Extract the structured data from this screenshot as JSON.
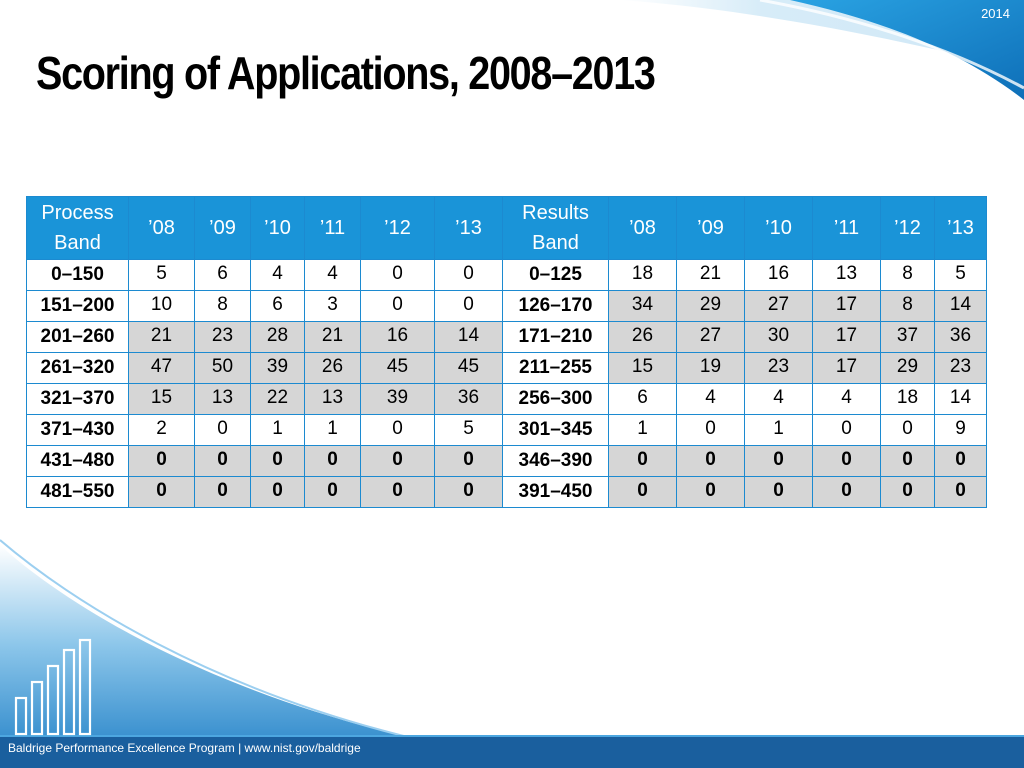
{
  "year_tag": "2014",
  "title": "Scoring of Applications, 2008–2013",
  "table": {
    "process_header": "Process Band",
    "results_header": "Results Band",
    "years": [
      "’08",
      "’09",
      "’10",
      "’11",
      "’12",
      "’13"
    ],
    "rows": [
      {
        "process_band": "0–150",
        "process": [
          "5",
          "6",
          "4",
          "4",
          "0",
          "0"
        ],
        "results_band": "0–125",
        "results": [
          "18",
          "21",
          "16",
          "13",
          "8",
          "5"
        ],
        "process_shade": false,
        "results_shade": false,
        "bold": false
      },
      {
        "process_band": "151–200",
        "process": [
          "10",
          "8",
          "6",
          "3",
          "0",
          "0"
        ],
        "results_band": "126–170",
        "results": [
          "34",
          "29",
          "27",
          "17",
          "8",
          "14"
        ],
        "process_shade": false,
        "results_shade": true,
        "bold": false
      },
      {
        "process_band": "201–260",
        "process": [
          "21",
          "23",
          "28",
          "21",
          "16",
          "14"
        ],
        "results_band": "171–210",
        "results": [
          "26",
          "27",
          "30",
          "17",
          "37",
          "36"
        ],
        "process_shade": true,
        "results_shade": true,
        "bold": false
      },
      {
        "process_band": "261–320",
        "process": [
          "47",
          "50",
          "39",
          "26",
          "45",
          "45"
        ],
        "results_band": "211–255",
        "results": [
          "15",
          "19",
          "23",
          "17",
          "29",
          "23"
        ],
        "process_shade": true,
        "results_shade": true,
        "bold": false
      },
      {
        "process_band": "321–370",
        "process": [
          "15",
          "13",
          "22",
          "13",
          "39",
          "36"
        ],
        "results_band": "256–300",
        "results": [
          "6",
          "4",
          "4",
          "4",
          "18",
          "14"
        ],
        "process_shade": true,
        "results_shade": false,
        "bold": false
      },
      {
        "process_band": "371–430",
        "process": [
          "2",
          "0",
          "1",
          "1",
          "0",
          "5"
        ],
        "results_band": "301–345",
        "results": [
          "1",
          "0",
          "1",
          "0",
          "0",
          "9"
        ],
        "process_shade": false,
        "results_shade": false,
        "bold": false
      },
      {
        "process_band": "431–480",
        "process": [
          "0",
          "0",
          "0",
          "0",
          "0",
          "0"
        ],
        "results_band": "346–390",
        "results": [
          "0",
          "0",
          "0",
          "0",
          "0",
          "0"
        ],
        "process_shade": true,
        "results_shade": true,
        "bold": true
      },
      {
        "process_band": "481–550",
        "process": [
          "0",
          "0",
          "0",
          "0",
          "0",
          "0"
        ],
        "results_band": "391–450",
        "results": [
          "0",
          "0",
          "0",
          "0",
          "0",
          "0"
        ],
        "process_shade": true,
        "results_shade": true,
        "bold": true
      }
    ]
  },
  "footer": "Baldrige Performance Excellence Program | www.nist.gov/baldrige",
  "colors": {
    "header_blue": "#1a94d8",
    "border_blue": "#1c8ad0",
    "shaded_cell": "#d6d6d6",
    "footer_band": "#1a5f9e"
  }
}
